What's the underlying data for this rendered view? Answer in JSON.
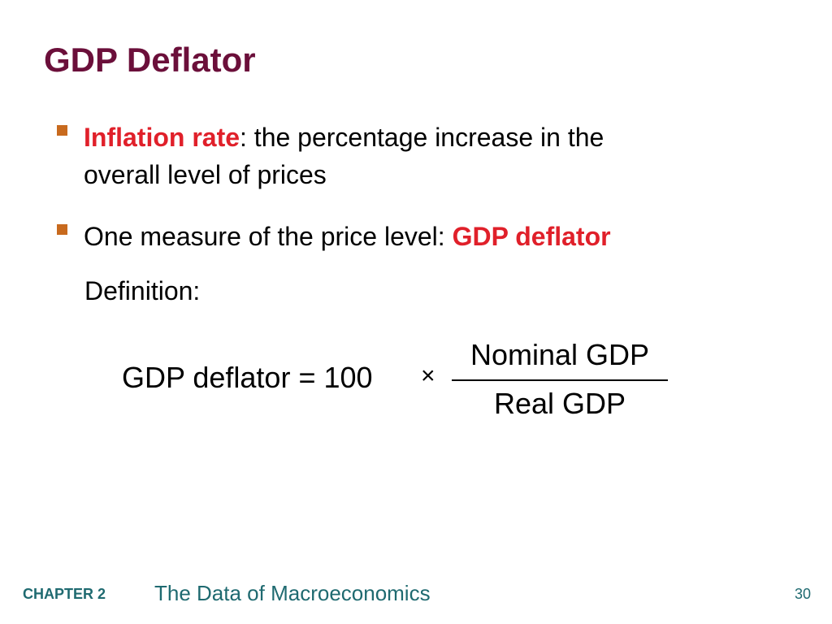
{
  "slide": {
    "title": "GDP Deflator",
    "bullets": [
      {
        "term": "Inflation rate",
        "sep": ":",
        "line1_rest": "  the percentage increase in the",
        "line2": "overall level of prices"
      },
      {
        "text": "One measure of the price level:  ",
        "term": "GDP deflator"
      }
    ],
    "definition_label": "Definition:",
    "formula": {
      "lhs": "GDP deflator = 100",
      "operator": "×",
      "numerator": "Nominal GDP",
      "denominator": "Real GDP"
    }
  },
  "footer": {
    "chapter": "CHAPTER 2",
    "title": "The Data of Macroeconomics",
    "page": "30"
  },
  "colors": {
    "title": "#6b0f3a",
    "emphasis": "#e0202a",
    "bullet_marker": "#c86a1e",
    "footer": "#1f6a70"
  }
}
